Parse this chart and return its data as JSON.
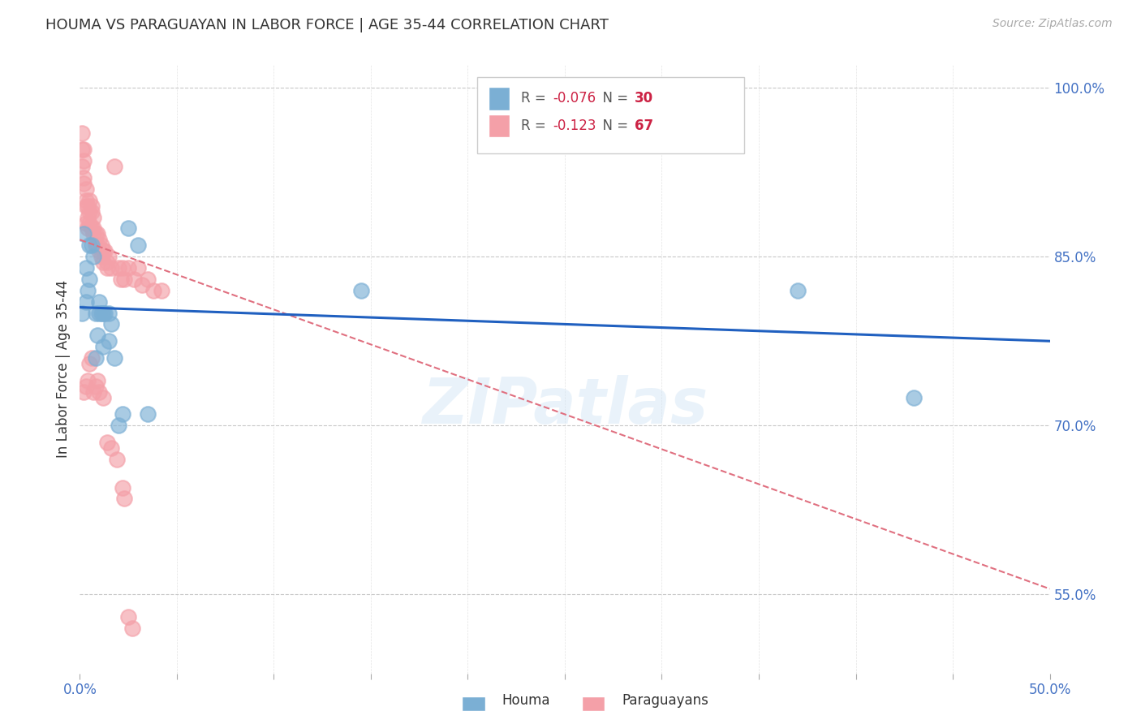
{
  "title": "HOUMA VS PARAGUAYAN IN LABOR FORCE | AGE 35-44 CORRELATION CHART",
  "source_text": "Source: ZipAtlas.com",
  "ylabel": "In Labor Force | Age 35-44",
  "xlim": [
    0.0,
    0.5
  ],
  "ylim": [
    0.48,
    1.02
  ],
  "yticks_right": [
    0.55,
    0.7,
    0.85,
    1.0
  ],
  "ytick_labels_right": [
    "55.0%",
    "70.0%",
    "85.0%",
    "100.0%"
  ],
  "houma_x": [
    0.001,
    0.002,
    0.003,
    0.003,
    0.004,
    0.005,
    0.006,
    0.007,
    0.008,
    0.009,
    0.01,
    0.011,
    0.012,
    0.013,
    0.015,
    0.016,
    0.018,
    0.02,
    0.022,
    0.025,
    0.03,
    0.035,
    0.005,
    0.008,
    0.01,
    0.012,
    0.015,
    0.145,
    0.37,
    0.43
  ],
  "houma_y": [
    0.8,
    0.87,
    0.84,
    0.81,
    0.82,
    0.86,
    0.86,
    0.85,
    0.8,
    0.78,
    0.8,
    0.8,
    0.77,
    0.8,
    0.775,
    0.79,
    0.76,
    0.7,
    0.71,
    0.875,
    0.86,
    0.71,
    0.83,
    0.76,
    0.81,
    0.8,
    0.8,
    0.82,
    0.82,
    0.725
  ],
  "paraguayan_x": [
    0.001,
    0.001,
    0.001,
    0.002,
    0.002,
    0.002,
    0.002,
    0.003,
    0.003,
    0.003,
    0.003,
    0.004,
    0.004,
    0.004,
    0.005,
    0.005,
    0.005,
    0.006,
    0.006,
    0.006,
    0.007,
    0.007,
    0.007,
    0.008,
    0.008,
    0.009,
    0.009,
    0.01,
    0.01,
    0.011,
    0.011,
    0.012,
    0.012,
    0.013,
    0.014,
    0.014,
    0.015,
    0.016,
    0.018,
    0.02,
    0.021,
    0.022,
    0.023,
    0.025,
    0.028,
    0.03,
    0.032,
    0.035,
    0.038,
    0.042,
    0.002,
    0.003,
    0.004,
    0.005,
    0.006,
    0.007,
    0.008,
    0.009,
    0.01,
    0.012,
    0.014,
    0.016,
    0.019,
    0.022,
    0.023,
    0.025,
    0.027
  ],
  "paraguayan_y": [
    0.96,
    0.945,
    0.93,
    0.945,
    0.935,
    0.92,
    0.915,
    0.91,
    0.9,
    0.895,
    0.88,
    0.895,
    0.885,
    0.875,
    0.9,
    0.89,
    0.88,
    0.895,
    0.89,
    0.875,
    0.885,
    0.875,
    0.87,
    0.87,
    0.86,
    0.87,
    0.86,
    0.865,
    0.855,
    0.86,
    0.85,
    0.855,
    0.845,
    0.855,
    0.845,
    0.84,
    0.85,
    0.84,
    0.93,
    0.84,
    0.83,
    0.84,
    0.83,
    0.84,
    0.83,
    0.84,
    0.825,
    0.83,
    0.82,
    0.82,
    0.73,
    0.735,
    0.74,
    0.755,
    0.76,
    0.73,
    0.735,
    0.74,
    0.73,
    0.725,
    0.685,
    0.68,
    0.67,
    0.645,
    0.635,
    0.53,
    0.52
  ],
  "houma_color": "#7bafd4",
  "paraguayan_color": "#f4a0a8",
  "houma_line_color": "#2060c0",
  "paraguayan_line_color": "#e07080",
  "houma_R": -0.076,
  "houma_N": 30,
  "paraguayan_R": -0.123,
  "paraguayan_N": 67,
  "houma_line_x0": 0.0,
  "houma_line_y0": 0.805,
  "houma_line_x1": 0.5,
  "houma_line_y1": 0.775,
  "parag_line_x0": 0.0,
  "parag_line_y0": 0.865,
  "parag_line_x1": 0.5,
  "parag_line_y1": 0.555,
  "watermark": "ZIPatlas",
  "background_color": "#ffffff",
  "grid_color": "#c8c8c8"
}
